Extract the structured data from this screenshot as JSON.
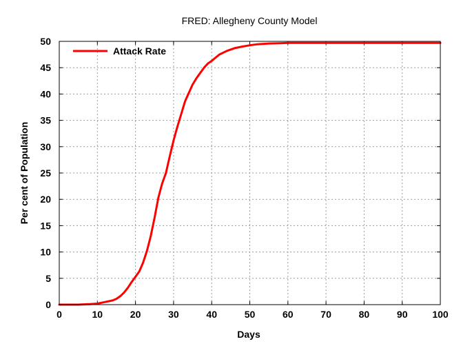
{
  "chart_data": {
    "type": "line",
    "title": "FRED: Allegheny County Model",
    "xlabel": "Days",
    "ylabel": "Per cent of Population",
    "xlim": [
      0,
      100
    ],
    "ylim": [
      0,
      50
    ],
    "xticks": [
      0,
      10,
      20,
      30,
      40,
      50,
      60,
      70,
      80,
      90,
      100
    ],
    "yticks": [
      0,
      5,
      10,
      15,
      20,
      25,
      30,
      35,
      40,
      45,
      50
    ],
    "grid": true,
    "legend_position": "top-left",
    "series": [
      {
        "name": "Attack Rate",
        "color": "#ff0000",
        "x": [
          0,
          5,
          8,
          10,
          12,
          14,
          15,
          16,
          17,
          18,
          19,
          20,
          21,
          22,
          23,
          24,
          25,
          26,
          27,
          28,
          29,
          30,
          31,
          32,
          33,
          34,
          35,
          36,
          37,
          38,
          39,
          40,
          42,
          44,
          46,
          48,
          50,
          52,
          55,
          58,
          60,
          65,
          70,
          80,
          90,
          100
        ],
        "y": [
          0,
          0,
          0.1,
          0.2,
          0.5,
          0.8,
          1.1,
          1.6,
          2.3,
          3.2,
          4.3,
          5.3,
          6.3,
          8.0,
          10.2,
          13.0,
          16.5,
          20.3,
          23.0,
          25.0,
          28.2,
          31.2,
          33.8,
          36.2,
          38.6,
          40.2,
          41.8,
          43.0,
          44.0,
          45.0,
          45.8,
          46.3,
          47.5,
          48.2,
          48.7,
          49.0,
          49.25,
          49.45,
          49.6,
          49.65,
          49.7,
          49.7,
          49.7,
          49.7,
          49.7,
          49.7
        ]
      }
    ]
  }
}
